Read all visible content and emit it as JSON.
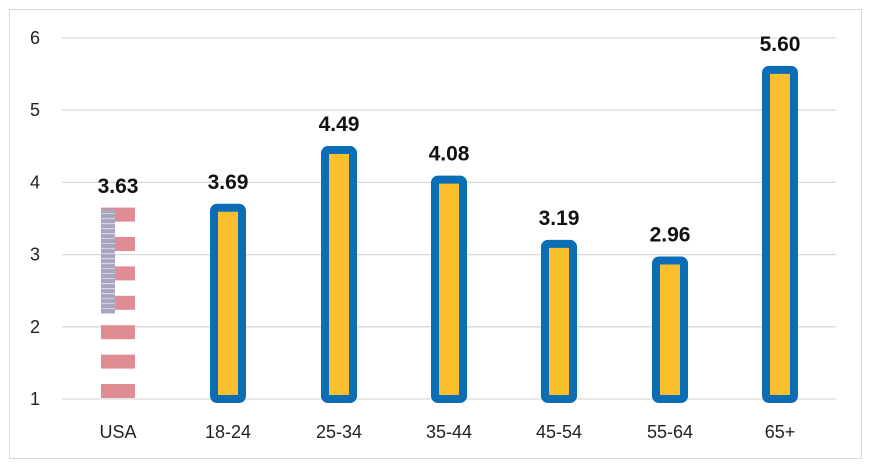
{
  "chart_data": {
    "type": "bar",
    "title": "",
    "xlabel": "",
    "ylabel": "",
    "categories": [
      "USA",
      "18-24",
      "25-34",
      "35-44",
      "45-54",
      "55-64",
      "65+"
    ],
    "values": [
      3.63,
      3.69,
      4.49,
      4.08,
      3.19,
      2.96,
      5.6
    ],
    "data_labels": [
      "3.63",
      "3.69",
      "4.49",
      "4.08",
      "3.19",
      "2.96",
      "5.60"
    ],
    "ylim": [
      1,
      6
    ],
    "yticks": [
      "1",
      "2",
      "3",
      "4",
      "5",
      "6"
    ],
    "grid": true,
    "legend": "none",
    "colors": {
      "bar_fill": "#FBBF2E",
      "bar_border": "#0B6DB5",
      "flag_red": "#E08C94",
      "flag_blue": "#A6A6C2",
      "grid": "#d9d9d9"
    },
    "usa_bar_style": "flag"
  }
}
